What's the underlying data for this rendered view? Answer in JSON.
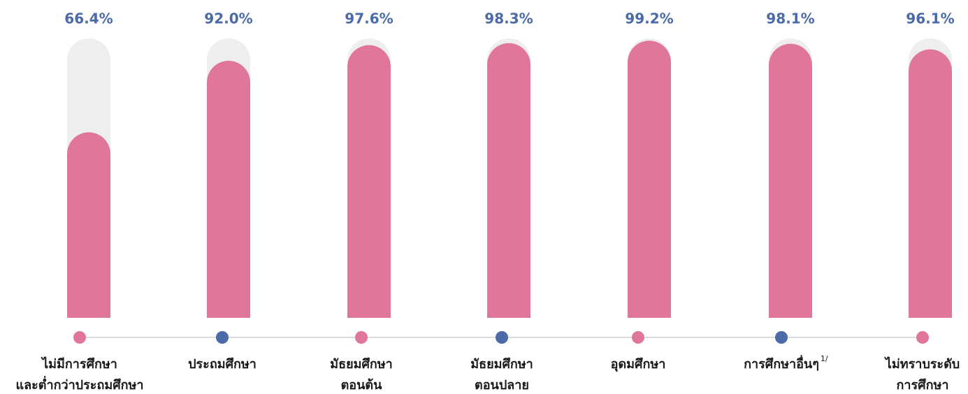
{
  "chart_data": {
    "type": "bar",
    "categories": [
      "ไม่มีการศึกษา\nและต่ำกว่าประถมศึกษา",
      "ประถมศึกษา",
      "มัธยมศึกษา\nตอนต้น",
      "มัธยมศึกษา\nตอนปลาย",
      "อุดมศึกษา",
      "การศึกษาอื่นๆ",
      "ไม่ทราบระดับ\nการศึกษา"
    ],
    "category_superscripts": [
      null,
      null,
      null,
      null,
      null,
      "1/",
      null
    ],
    "values": [
      66.4,
      92.0,
      97.6,
      98.3,
      99.2,
      98.1,
      96.1
    ],
    "value_labels": [
      "66.4%",
      "92.0%",
      "97.6%",
      "98.3%",
      "99.2%",
      "98.1%",
      "96.1%"
    ],
    "color": "#e0769a",
    "track_color": "#eeeeee",
    "dot_colors": [
      "#e0769a",
      "#4a6aa8",
      "#e0769a",
      "#4a6aa8",
      "#e0769a",
      "#4a6aa8",
      "#e0769a"
    ],
    "ylim": [
      0,
      100
    ]
  }
}
